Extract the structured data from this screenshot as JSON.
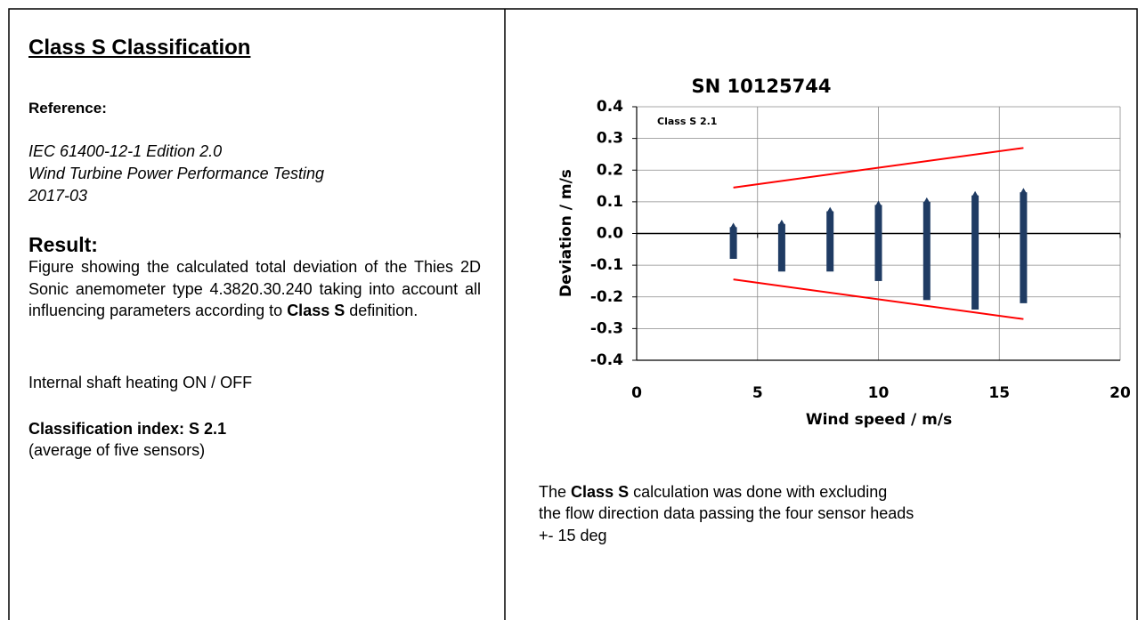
{
  "left": {
    "title": "Class S Classification",
    "reference_heading": "Reference:",
    "reference_lines": [
      "IEC 61400-12-1 Edition 2.0",
      "Wind Turbine Power Performance Testing",
      "2017-03"
    ],
    "result_heading": "Result:",
    "result_parts": [
      "Figure showing the calculated total deviation of the Thies 2D Sonic anemometer type 4.3820.30.240 taking into account all influencing parameters according to",
      "Class S",
      "definition."
    ],
    "heating": "Internal shaft heating ON / OFF",
    "index": "Classification index: S 2.1",
    "index_note": "(average of five sensors)"
  },
  "note": {
    "line1": [
      "The",
      "Class S",
      "calculation was done with excluding"
    ],
    "line2": "the flow direction data passing the four sensor heads",
    "line3": "+- 15 deg"
  },
  "chart_data": {
    "type": "scatter",
    "title": "SN 10125744",
    "annotation": "Class S 2.1",
    "xlabel": "Wind speed / m/s",
    "ylabel": "Deviation / m/s",
    "xlim": [
      0,
      20
    ],
    "xticks": [
      0,
      5,
      10,
      15,
      20
    ],
    "ylim": [
      -0.4,
      0.4
    ],
    "yticks": [
      -0.4,
      -0.3,
      -0.2,
      -0.1,
      {
        "value": 0,
        "label": "0.0"
      },
      0.1,
      0.2,
      0.3,
      0.4
    ],
    "grid": true,
    "clusters": {
      "color": "#1f3b63",
      "x": [
        4,
        6,
        8,
        10,
        12,
        14,
        16
      ],
      "min": [
        -0.08,
        -0.12,
        -0.12,
        -0.15,
        -0.21,
        -0.24,
        -0.22
      ],
      "max": [
        0.02,
        0.03,
        0.07,
        0.09,
        0.1,
        0.12,
        0.13
      ]
    },
    "lines": [
      {
        "color": "#ff0000",
        "x": [
          4,
          16
        ],
        "values": [
          0.145,
          0.27
        ]
      },
      {
        "color": "#ff0000",
        "x": [
          4,
          16
        ],
        "values": [
          -0.145,
          -0.27
        ]
      }
    ]
  }
}
